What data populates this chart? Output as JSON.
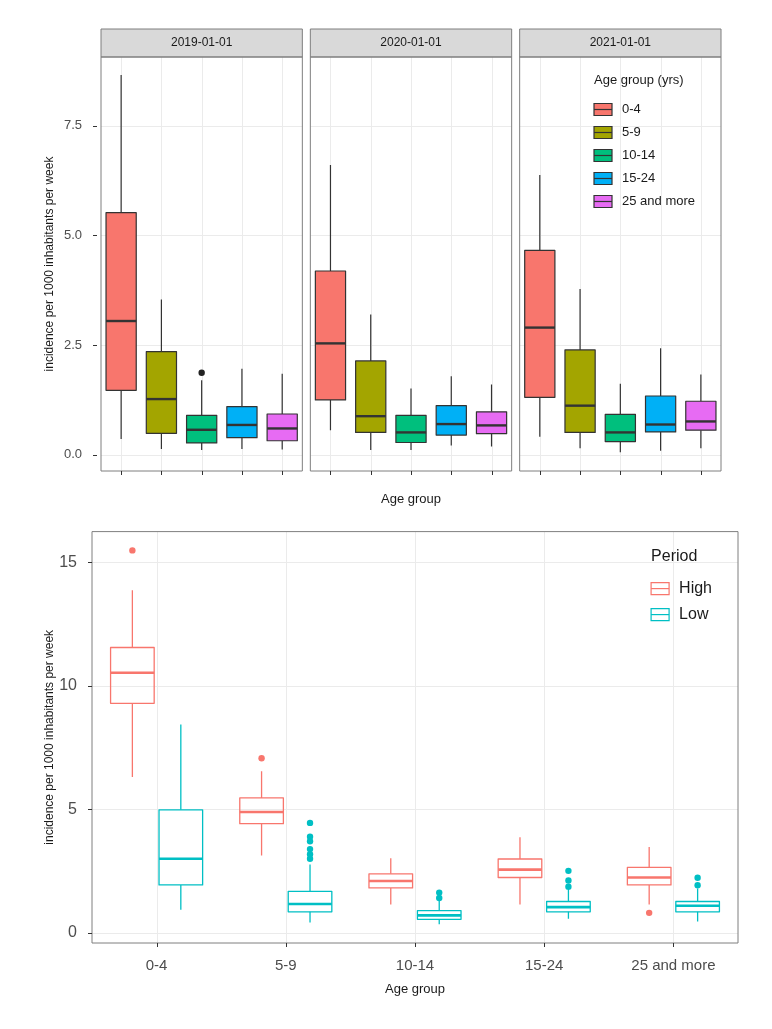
{
  "chart_data": [
    {
      "type": "box",
      "xlabel": "Age group",
      "ylabel": "incidence per 1000 inhabitants per week",
      "legend_title": "Age group (yrs)",
      "categories": [
        "2019-01-01",
        "2020-01-01",
        "2021-01-01"
      ],
      "series": [
        {
          "name": "0-4",
          "color": "#f8766d",
          "boxes": [
            {
              "low": 0.36,
              "q1": 1.47,
              "median": 3.05,
              "q3": 5.52,
              "high": 8.66
            },
            {
              "low": 0.56,
              "q1": 1.25,
              "median": 2.54,
              "q3": 4.19,
              "high": 6.61
            },
            {
              "low": 0.41,
              "q1": 1.31,
              "median": 2.9,
              "q3": 4.66,
              "high": 6.38
            }
          ]
        },
        {
          "name": "5-9",
          "color": "#a3a500",
          "boxes": [
            {
              "low": 0.13,
              "q1": 0.49,
              "median": 1.27,
              "q3": 2.35,
              "high": 3.54
            },
            {
              "low": 0.11,
              "q1": 0.51,
              "median": 0.88,
              "q3": 2.14,
              "high": 3.2
            },
            {
              "low": 0.15,
              "q1": 0.51,
              "median": 1.12,
              "q3": 2.39,
              "high": 3.78
            }
          ]
        },
        {
          "name": "10-14",
          "color": "#00bf7d",
          "boxes": [
            {
              "low": 0.11,
              "q1": 0.27,
              "median": 0.57,
              "q3": 0.9,
              "high": 1.7,
              "outliers": [
                1.87
              ]
            },
            {
              "low": 0.11,
              "q1": 0.28,
              "median": 0.51,
              "q3": 0.9,
              "high": 1.51
            },
            {
              "low": 0.06,
              "q1": 0.3,
              "median": 0.51,
              "q3": 0.92,
              "high": 1.62
            }
          ]
        },
        {
          "name": "15-24",
          "color": "#00b0f6",
          "boxes": [
            {
              "low": 0.13,
              "q1": 0.39,
              "median": 0.68,
              "q3": 1.1,
              "high": 1.96
            },
            {
              "low": 0.21,
              "q1": 0.45,
              "median": 0.7,
              "q3": 1.12,
              "high": 1.79
            },
            {
              "low": 0.09,
              "q1": 0.52,
              "median": 0.69,
              "q3": 1.34,
              "high": 2.43
            }
          ]
        },
        {
          "name": "25 and more",
          "color": "#e76bf3",
          "boxes": [
            {
              "low": 0.12,
              "q1": 0.32,
              "median": 0.6,
              "q3": 0.93,
              "high": 1.85
            },
            {
              "low": 0.19,
              "q1": 0.48,
              "median": 0.67,
              "q3": 0.98,
              "high": 1.6
            },
            {
              "low": 0.15,
              "q1": 0.56,
              "median": 0.76,
              "q3": 1.22,
              "high": 1.83
            }
          ]
        }
      ],
      "ylim": [
        -0.37,
        9.07
      ],
      "yticks": [
        {
          "value": 0,
          "label": "0.0"
        },
        {
          "value": 2.5,
          "label": "2.5"
        },
        {
          "value": 5,
          "label": "5.0"
        },
        {
          "value": 7.5,
          "label": "7.5"
        }
      ],
      "grid": true,
      "legend": "top right"
    },
    {
      "type": "box",
      "xlabel": "Age group",
      "ylabel": "incidence per 1000 inhabitants per week",
      "legend_title": "Period",
      "categories": [
        "0-4",
        "5-9",
        "10-14",
        "15-24",
        "25 and more"
      ],
      "series": [
        {
          "name": "High",
          "color": "#f8766d",
          "boxes": [
            {
              "low": 6.31,
              "q1": 9.29,
              "median": 10.53,
              "q3": 11.55,
              "high": 13.87,
              "outliers": [
                15.48
              ]
            },
            {
              "low": 3.13,
              "q1": 4.42,
              "median": 4.89,
              "q3": 5.46,
              "high": 6.54,
              "outliers": [
                7.07
              ]
            },
            {
              "low": 1.15,
              "q1": 1.82,
              "median": 2.1,
              "q3": 2.39,
              "high": 3.02
            },
            {
              "low": 1.15,
              "q1": 2.24,
              "median": 2.56,
              "q3": 2.99,
              "high": 3.87
            },
            {
              "low": 1.15,
              "q1": 1.94,
              "median": 2.24,
              "q3": 2.65,
              "high": 3.48,
              "outliers": [
                0.81
              ]
            }
          ]
        },
        {
          "name": "Low",
          "color": "#00bfc4",
          "boxes": [
            {
              "low": 0.94,
              "q1": 1.94,
              "median": 3.0,
              "q3": 4.98,
              "high": 8.43
            },
            {
              "low": 0.42,
              "q1": 0.85,
              "median": 1.17,
              "q3": 1.68,
              "high": 2.77,
              "outliers": [
                4.45,
                3.89,
                3.71,
                3.39,
                3.18,
                3.0
              ]
            },
            {
              "low": 0.35,
              "q1": 0.55,
              "median": 0.71,
              "q3": 0.9,
              "high": 1.36,
              "outliers": [
                1.63,
                1.41
              ]
            },
            {
              "low": 0.57,
              "q1": 0.85,
              "median": 1.04,
              "q3": 1.27,
              "high": 1.78,
              "outliers": [
                2.51,
                2.12,
                1.87
              ]
            },
            {
              "low": 0.46,
              "q1": 0.85,
              "median": 1.1,
              "q3": 1.27,
              "high": 1.8,
              "outliers": [
                2.23,
                1.93
              ]
            }
          ]
        }
      ],
      "ylim": [
        -0.41,
        16.24
      ],
      "yticks": [
        0,
        5,
        10,
        15
      ],
      "grid": true,
      "legend": "top right"
    }
  ]
}
